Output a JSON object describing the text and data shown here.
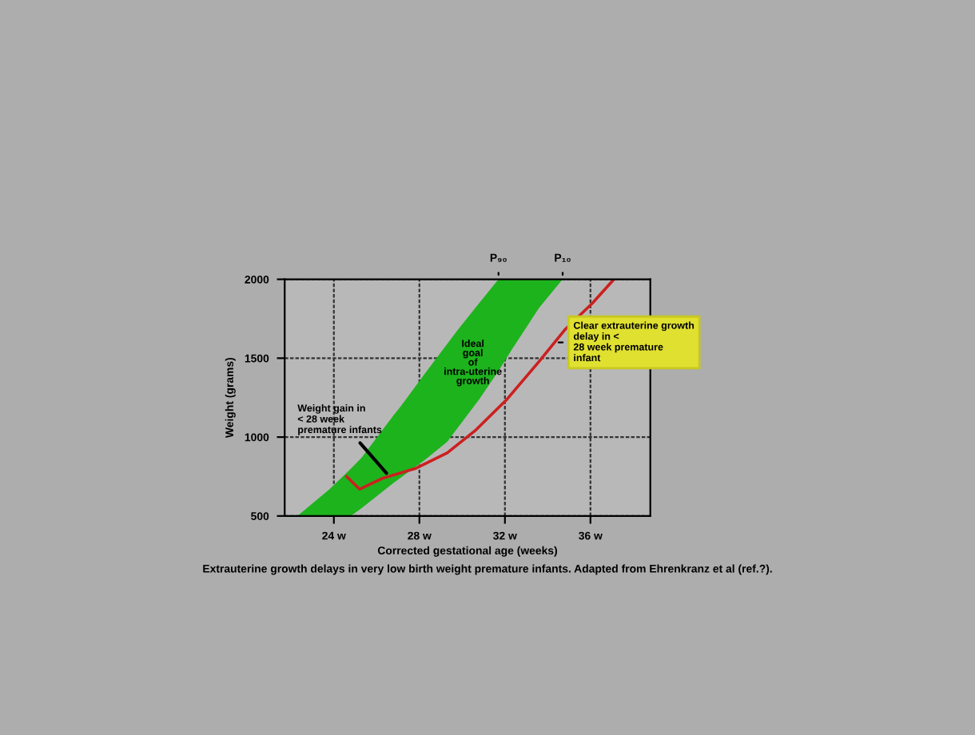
{
  "chart_data": {
    "type": "line",
    "xlabel": "Corrected gestational age (weeks)",
    "ylabel": "Weight (grams)",
    "xlim": [
      21.7,
      38.8
    ],
    "ylim": [
      500,
      2000
    ],
    "xticks": [
      {
        "value": 24,
        "label": "24 w"
      },
      {
        "value": 28,
        "label": "28 w"
      },
      {
        "value": 32,
        "label": "32 w"
      },
      {
        "value": 36,
        "label": "36 w"
      }
    ],
    "yticks": [
      500,
      1000,
      1500,
      2000
    ],
    "grid": true,
    "series": [
      {
        "type": "area",
        "color": "#1db31d",
        "x": [
          22.3,
          23.8,
          24.8,
          25.3,
          26.8,
          27.1,
          28.3,
          29.3,
          29.8,
          30.8,
          31.7,
          32.3,
          33.6,
          34.7
        ],
        "values": [
          null,
          null,
          null,
          null,
          null,
          null,
          null,
          null,
          null,
          null,
          null,
          null,
          null,
          null
        ],
        "upper": [
          500,
          670,
          800,
          870,
          1140,
          1190,
          1410,
          1590,
          1680,
          1850,
          2000,
          2000,
          2000,
          2000
        ],
        "lower": [
          500,
          500,
          500,
          550,
          710,
          740,
          860,
          970,
          1060,
          1240,
          1420,
          1550,
          1820,
          2000
        ]
      },
      {
        "color": "#cc2020",
        "x": [
          24.6,
          25.2,
          26.3,
          27.8,
          29.3,
          30.6,
          32.1,
          33.6,
          34.8,
          36.1,
          37.1
        ],
        "values": [
          750,
          670,
          740,
          800,
          900,
          1040,
          1240,
          1480,
          1680,
          1850,
          2000
        ]
      }
    ],
    "annotations": [
      {
        "text": "P₉₀",
        "x": 31.7,
        "y": 2000
      },
      {
        "text": "P₁₀",
        "x": 34.7,
        "y": 2000
      },
      "Ideal goal of intra-uterine growth",
      {
        "text": "Weight gain in < 28 week premature infants",
        "x": 26.6,
        "y": 750
      },
      {
        "text": "Clear extrauterine growth delay in < 28 week premature infant",
        "x": 34.3,
        "y": 1600
      },
      "Extrauterine growth delays in very low birth weight premature infants. Adapted from Ehrenkranz et al (ref.?)."
    ]
  }
}
